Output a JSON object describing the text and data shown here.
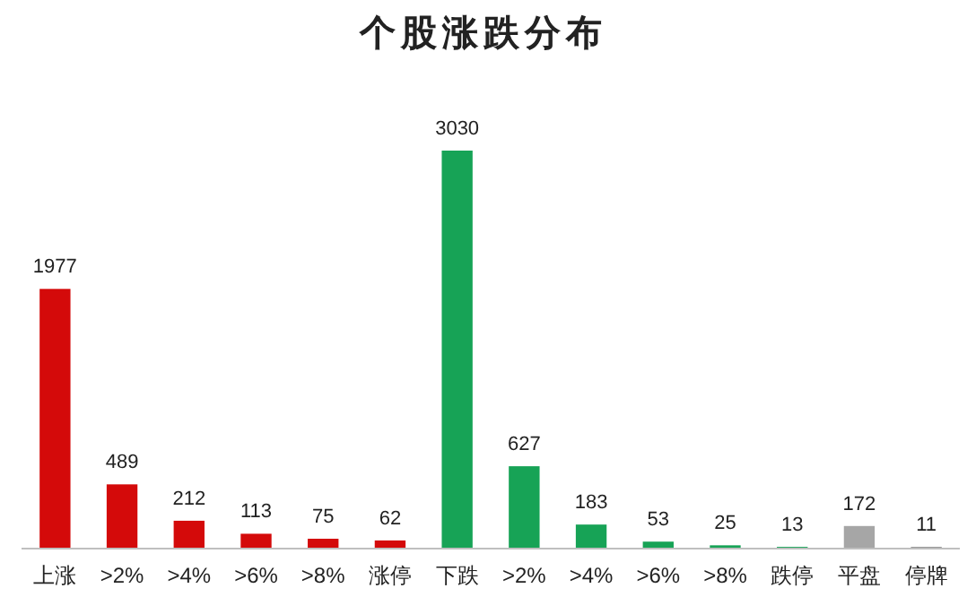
{
  "chart_data": {
    "type": "bar",
    "title": "个股涨跌分布",
    "categories": [
      "上涨",
      ">2%",
      ">4%",
      ">6%",
      ">8%",
      "涨停",
      "下跌",
      ">2%",
      ">4%",
      ">6%",
      ">8%",
      "跌停",
      "平盘",
      "停牌"
    ],
    "values": [
      1977,
      489,
      212,
      113,
      75,
      62,
      3030,
      627,
      183,
      53,
      25,
      13,
      172,
      11
    ],
    "colors": [
      "#d40a0a",
      "#d40a0a",
      "#d40a0a",
      "#d40a0a",
      "#d40a0a",
      "#d40a0a",
      "#17a356",
      "#17a356",
      "#17a356",
      "#17a356",
      "#17a356",
      "#17a356",
      "#a6a6a6",
      "#595959"
    ],
    "data_labels": true
  }
}
